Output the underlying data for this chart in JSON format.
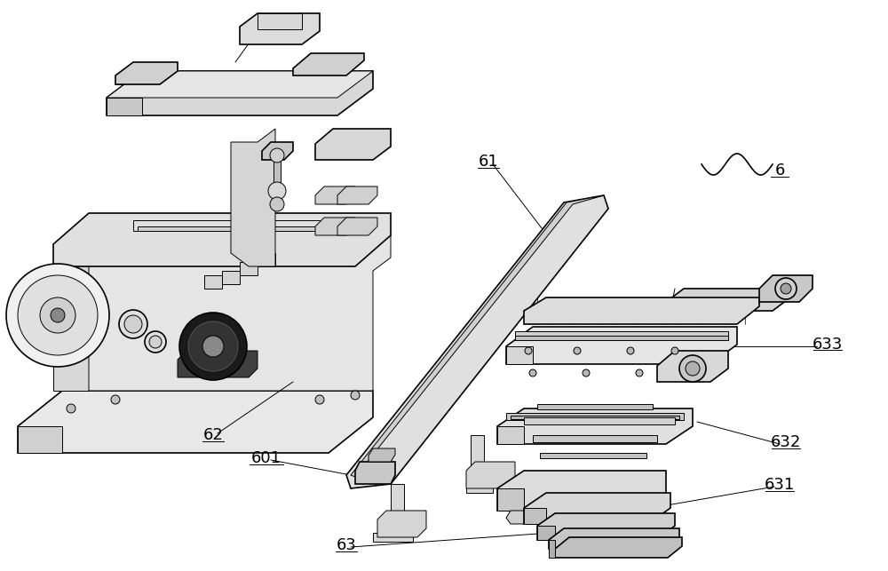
{
  "bg_color": "#ffffff",
  "line_color": "#000000",
  "fig_width": 10.0,
  "fig_height": 6.43
}
